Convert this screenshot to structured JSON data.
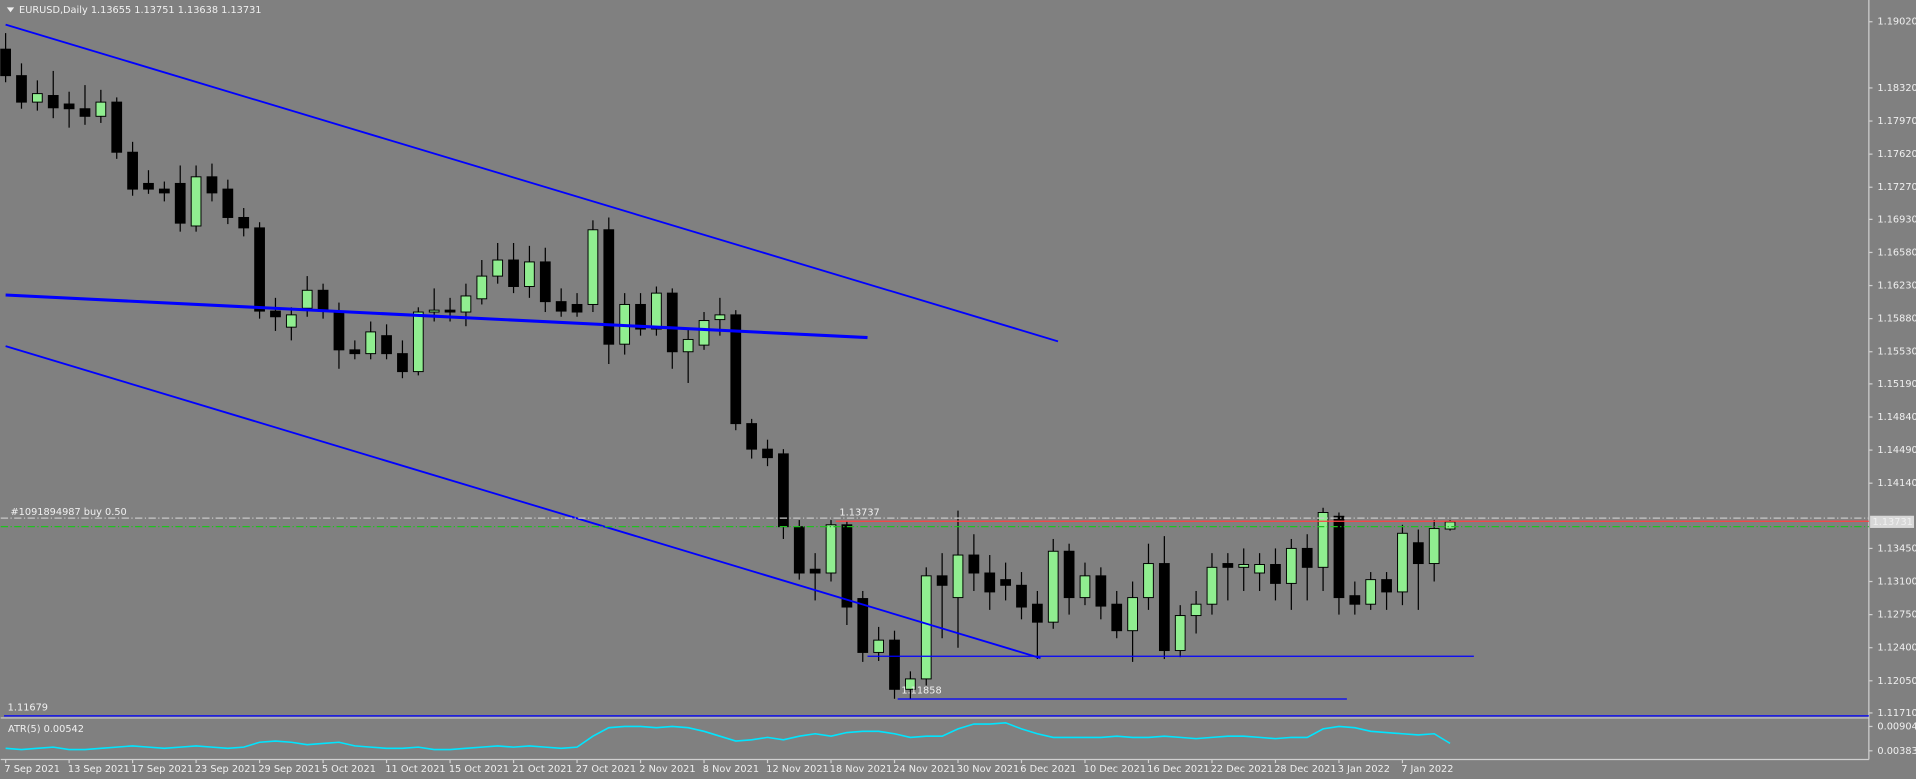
{
  "chart_data": {
    "type": "candlestick",
    "title": "EURUSD,Daily",
    "colors": {
      "bull": "#90ee90",
      "bear": "#000000",
      "wick": "#000000",
      "background": "#808080"
    },
    "categories": [
      "7 Sep 2021",
      null,
      null,
      null,
      "13 Sep 2021",
      null,
      null,
      null,
      "17 Sep 2021",
      null,
      null,
      null,
      "23 Sep 2021",
      null,
      null,
      null,
      "29 Sep 2021",
      null,
      null,
      null,
      "5 Oct 2021",
      null,
      null,
      null,
      "11 Oct 2021",
      null,
      null,
      null,
      "15 Oct 2021",
      null,
      null,
      null,
      "21 Oct 2021",
      null,
      null,
      null,
      "27 Oct 2021",
      null,
      null,
      null,
      "2 Nov 2021",
      null,
      null,
      null,
      "8 Nov 2021",
      null,
      null,
      null,
      "12 Nov 2021",
      null,
      null,
      null,
      "18 Nov 2021",
      null,
      null,
      null,
      "24 Nov 2021",
      null,
      null,
      null,
      "30 Nov 2021",
      null,
      null,
      null,
      "6 Dec 2021",
      null,
      null,
      null,
      "10 Dec 2021",
      null,
      null,
      null,
      "16 Dec 2021",
      null,
      null,
      null,
      "22 Dec 2021",
      null,
      null,
      null,
      "28 Dec 2021",
      null,
      null,
      null,
      "3 Jan 2022",
      null,
      null,
      null,
      "7 Jan 2022",
      null,
      null,
      null
    ],
    "candles": [
      [
        1.1873,
        1.189,
        1.1838,
        1.1845
      ],
      [
        1.1845,
        1.1858,
        1.181,
        1.1817
      ],
      [
        1.1817,
        1.184,
        1.1808,
        1.1826
      ],
      [
        1.1824,
        1.185,
        1.18,
        1.1811
      ],
      [
        1.1815,
        1.1828,
        1.179,
        1.181
      ],
      [
        1.181,
        1.1835,
        1.1793,
        1.1802
      ],
      [
        1.1802,
        1.183,
        1.1795,
        1.1817
      ],
      [
        1.1817,
        1.1822,
        1.1757,
        1.1764
      ],
      [
        1.1764,
        1.1775,
        1.1718,
        1.1725
      ],
      [
        1.1731,
        1.1745,
        1.172,
        1.1725
      ],
      [
        1.1725,
        1.1733,
        1.1712,
        1.1721
      ],
      [
        1.1731,
        1.175,
        1.168,
        1.1689
      ],
      [
        1.1686,
        1.175,
        1.168,
        1.1738
      ],
      [
        1.1738,
        1.1752,
        1.1712,
        1.1721
      ],
      [
        1.1725,
        1.1735,
        1.1688,
        1.1695
      ],
      [
        1.1695,
        1.1705,
        1.1675,
        1.1684
      ],
      [
        1.1684,
        1.169,
        1.1588,
        1.1596
      ],
      [
        1.1596,
        1.161,
        1.1575,
        1.159
      ],
      [
        1.1579,
        1.16,
        1.1565,
        1.1592
      ],
      [
        1.1599,
        1.1633,
        1.159,
        1.1618
      ],
      [
        1.1618,
        1.1625,
        1.1588,
        1.1596
      ],
      [
        1.1596,
        1.1605,
        1.1535,
        1.1555
      ],
      [
        1.1555,
        1.1565,
        1.1545,
        1.1551
      ],
      [
        1.1551,
        1.1585,
        1.1545,
        1.1574
      ],
      [
        1.157,
        1.1582,
        1.1545,
        1.1551
      ],
      [
        1.1551,
        1.1565,
        1.1525,
        1.1532
      ],
      [
        1.1532,
        1.16,
        1.1528,
        1.1595
      ],
      [
        1.1595,
        1.162,
        1.1585,
        1.1597
      ],
      [
        1.1597,
        1.161,
        1.1585,
        1.1595
      ],
      [
        1.1595,
        1.1625,
        1.158,
        1.1612
      ],
      [
        1.1609,
        1.165,
        1.1603,
        1.1633
      ],
      [
        1.1633,
        1.1668,
        1.1625,
        1.165
      ],
      [
        1.165,
        1.1668,
        1.1615,
        1.1622
      ],
      [
        1.1622,
        1.1665,
        1.161,
        1.1648
      ],
      [
        1.1648,
        1.1663,
        1.1595,
        1.1606
      ],
      [
        1.1606,
        1.162,
        1.159,
        1.1596
      ],
      [
        1.1603,
        1.1615,
        1.159,
        1.1595
      ],
      [
        1.1603,
        1.1692,
        1.1595,
        1.1682
      ],
      [
        1.1682,
        1.1695,
        1.154,
        1.1561
      ],
      [
        1.1561,
        1.1615,
        1.155,
        1.1603
      ],
      [
        1.1603,
        1.1615,
        1.157,
        1.1577
      ],
      [
        1.1577,
        1.1622,
        1.157,
        1.1615
      ],
      [
        1.1615,
        1.162,
        1.1535,
        1.1553
      ],
      [
        1.1553,
        1.1578,
        1.152,
        1.1566
      ],
      [
        1.156,
        1.1595,
        1.1555,
        1.1586
      ],
      [
        1.1587,
        1.161,
        1.157,
        1.1592
      ],
      [
        1.1592,
        1.1597,
        1.147,
        1.1477
      ],
      [
        1.1477,
        1.1482,
        1.144,
        1.145
      ],
      [
        1.145,
        1.146,
        1.1432,
        1.1441
      ],
      [
        1.1445,
        1.145,
        1.1355,
        1.1368
      ],
      [
        1.1368,
        1.1375,
        1.1312,
        1.1319
      ],
      [
        1.1323,
        1.134,
        1.129,
        1.1319
      ],
      [
        1.1319,
        1.1375,
        1.131,
        1.137
      ],
      [
        1.137,
        1.1374,
        1.1264,
        1.1283
      ],
      [
        1.1292,
        1.13,
        1.1225,
        1.1235
      ],
      [
        1.1235,
        1.1262,
        1.1226,
        1.1248
      ],
      [
        1.1248,
        1.1258,
        1.1186,
        1.1196
      ],
      [
        1.1196,
        1.1215,
        1.1186,
        1.1207
      ],
      [
        1.1207,
        1.1325,
        1.12,
        1.1316
      ],
      [
        1.1316,
        1.134,
        1.125,
        1.1306
      ],
      [
        1.1293,
        1.1385,
        1.124,
        1.1338
      ],
      [
        1.1338,
        1.136,
        1.13,
        1.1319
      ],
      [
        1.1319,
        1.1338,
        1.128,
        1.1299
      ],
      [
        1.1312,
        1.133,
        1.129,
        1.1306
      ],
      [
        1.1306,
        1.132,
        1.127,
        1.1283
      ],
      [
        1.1286,
        1.13,
        1.1228,
        1.1267
      ],
      [
        1.1267,
        1.1355,
        1.126,
        1.1342
      ],
      [
        1.1342,
        1.135,
        1.1275,
        1.1293
      ],
      [
        1.1293,
        1.133,
        1.1285,
        1.1316
      ],
      [
        1.1316,
        1.1325,
        1.127,
        1.1284
      ],
      [
        1.1286,
        1.13,
        1.125,
        1.1258
      ],
      [
        1.1258,
        1.131,
        1.1225,
        1.1293
      ],
      [
        1.1293,
        1.135,
        1.128,
        1.1329
      ],
      [
        1.1329,
        1.1358,
        1.1228,
        1.1237
      ],
      [
        1.1237,
        1.1285,
        1.123,
        1.1274
      ],
      [
        1.1274,
        1.13,
        1.1255,
        1.1286
      ],
      [
        1.1286,
        1.134,
        1.1275,
        1.1325
      ],
      [
        1.1329,
        1.134,
        1.129,
        1.1325
      ],
      [
        1.1325,
        1.1345,
        1.13,
        1.1328
      ],
      [
        1.1319,
        1.134,
        1.13,
        1.1328
      ],
      [
        1.1328,
        1.1345,
        1.129,
        1.1308
      ],
      [
        1.1308,
        1.1355,
        1.128,
        1.1345
      ],
      [
        1.1345,
        1.136,
        1.129,
        1.1325
      ],
      [
        1.1325,
        1.1388,
        1.13,
        1.1383
      ],
      [
        1.1379,
        1.1383,
        1.1275,
        1.1293
      ],
      [
        1.1295,
        1.131,
        1.1275,
        1.1286
      ],
      [
        1.1286,
        1.132,
        1.128,
        1.1312
      ],
      [
        1.1312,
        1.132,
        1.128,
        1.1299
      ],
      [
        1.1299,
        1.137,
        1.1285,
        1.1361
      ],
      [
        1.1351,
        1.1365,
        1.128,
        1.1329
      ],
      [
        1.1329,
        1.1375,
        1.131,
        1.1366
      ],
      [
        1.13655,
        1.13751,
        1.13638,
        1.13731
      ]
    ],
    "ylim": [
      1.1167,
      1.1925
    ],
    "yticks": [
      {
        "value": 1.1902,
        "label": "1.19020"
      },
      {
        "value": 1.1832,
        "label": "1.18320"
      },
      {
        "value": 1.1797,
        "label": "1.17970"
      },
      {
        "value": 1.1762,
        "label": "1.17620"
      },
      {
        "value": 1.1727,
        "label": "1.17270"
      },
      {
        "value": 1.1693,
        "label": "1.16930"
      },
      {
        "value": 1.1658,
        "label": "1.16580"
      },
      {
        "value": 1.1623,
        "label": "1.16230"
      },
      {
        "value": 1.1588,
        "label": "1.15880"
      },
      {
        "value": 1.1553,
        "label": "1.15530"
      },
      {
        "value": 1.1519,
        "label": "1.15190"
      },
      {
        "value": 1.1484,
        "label": "1.14840"
      },
      {
        "value": 1.1449,
        "label": "1.14490"
      },
      {
        "value": 1.1414,
        "label": "1.14140"
      },
      {
        "value": 1.1345,
        "label": "1.13450"
      },
      {
        "value": 1.131,
        "label": "1.13100"
      },
      {
        "value": 1.1275,
        "label": "1.12750"
      },
      {
        "value": 1.124,
        "label": "1.12400"
      },
      {
        "value": 1.1205,
        "label": "1.12050"
      },
      {
        "value": 1.1171,
        "label": "1.11710"
      }
    ],
    "trendlines": [
      {
        "x": [
          0,
          66.3
        ],
        "y": [
          1.1899,
          1.1564
        ],
        "color": "#0000ff",
        "width": 1.5
      },
      {
        "x": [
          0,
          54.3
        ],
        "y": [
          1.1613,
          1.1568
        ],
        "color": "#0000ff",
        "width": 2.5
      },
      {
        "x": [
          0,
          65.2
        ],
        "y": [
          1.1559,
          1.1229
        ],
        "color": "#0000ff",
        "width": 1.5
      },
      {
        "x": [
          54.3,
          92.5
        ],
        "y": [
          1.1231,
          1.1231
        ],
        "color": "#0000ff",
        "width": 1
      }
    ],
    "levels": [
      {
        "value": 1.13737,
        "from": 52.3,
        "color": "#ff4040"
      },
      {
        "value": 1.11858,
        "from": 56.2,
        "to": 84.5,
        "color": "#0000ff"
      },
      {
        "value": 1.11679,
        "from": -0.1,
        "color": "#0000ff"
      }
    ],
    "order_lines": [
      {
        "name": "#1091894987 buy 0.50",
        "value": 1.1377,
        "color": "#c8c8c8"
      },
      {
        "value": 1.1368,
        "color": "#20c020"
      }
    ],
    "atr": {
      "name": "ATR(5)",
      "color": "#00e5ff",
      "values": [
        0.00436,
        0.0041,
        0.00436,
        0.00462,
        0.0041,
        0.0041,
        0.00436,
        0.00462,
        0.00488,
        0.00462,
        0.00436,
        0.00462,
        0.00488,
        0.00462,
        0.00436,
        0.00462,
        0.00566,
        0.00592,
        0.00566,
        0.00514,
        0.0054,
        0.00566,
        0.00488,
        0.00462,
        0.00436,
        0.00436,
        0.00462,
        0.0041,
        0.0041,
        0.00436,
        0.00462,
        0.00488,
        0.00462,
        0.00488,
        0.00462,
        0.00436,
        0.00462,
        0.00696,
        0.00878,
        0.00904,
        0.00904,
        0.00878,
        0.00904,
        0.00878,
        0.008,
        0.00696,
        0.00592,
        0.00618,
        0.0067,
        0.00618,
        0.00696,
        0.00748,
        0.00696,
        0.00774,
        0.008,
        0.008,
        0.00748,
        0.0067,
        0.00696,
        0.00696,
        0.00852,
        0.00956,
        0.00956,
        0.00982,
        0.00852,
        0.00748,
        0.0067,
        0.0067,
        0.0067,
        0.0067,
        0.00696,
        0.0067,
        0.0067,
        0.00696,
        0.0067,
        0.00644,
        0.0067,
        0.00696,
        0.00696,
        0.0067,
        0.00644,
        0.0067,
        0.0067,
        0.00852,
        0.00904,
        0.00878,
        0.008,
        0.00774,
        0.00748,
        0.00722,
        0.00748,
        0.00542
      ],
      "ylim": [
        0.0025,
        0.0106
      ],
      "yticks": [
        0.00904,
        0.00383
      ]
    }
  }
}
